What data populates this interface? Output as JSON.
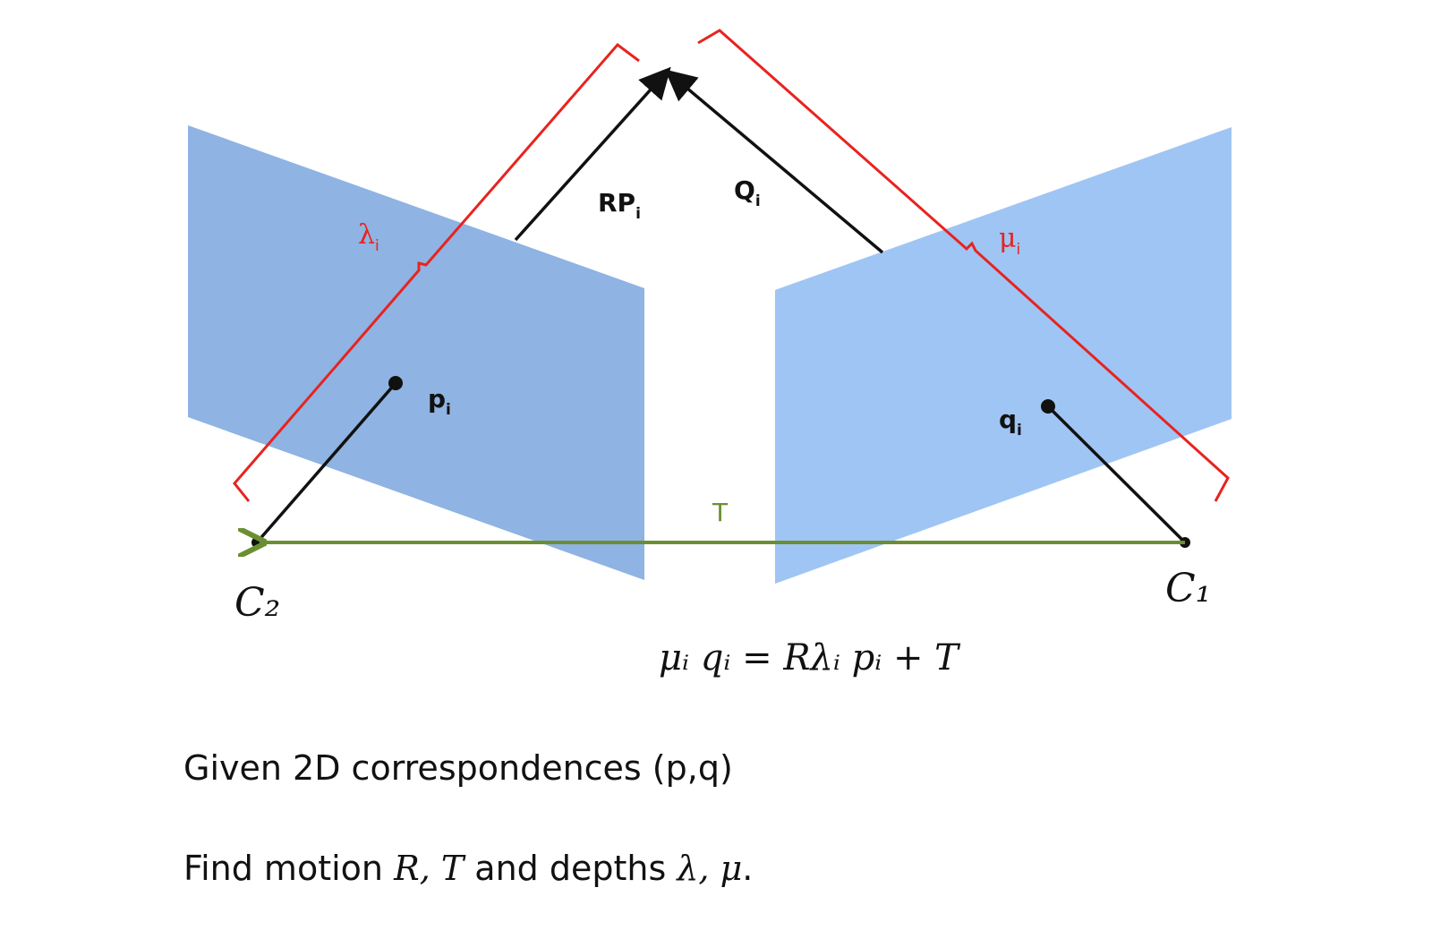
{
  "labels": {
    "rp": "RP",
    "rp_sub": "i",
    "q_big": "Q",
    "q_big_sub": "i",
    "lambda": "λ",
    "lambda_sub": "i",
    "mu": "μ",
    "mu_sub": "i",
    "p": "p",
    "p_sub": "i",
    "q": "q",
    "q_sub": "i",
    "t": "T",
    "c2": "C₂",
    "c1": "C₁"
  },
  "equation": "μᵢ qᵢ = Rλᵢ pᵢ + T",
  "caption": {
    "line1": "Given 2D correspondences (p,q)",
    "line2_prefix": "Find motion ",
    "line2_motion": "R, T",
    "line2_middle": " and depths ",
    "line2_depths": "λ, μ",
    "line2_suffix": "."
  },
  "colors": {
    "left_plane": "#8fb3e2",
    "right_plane": "#9fc5f4",
    "bracket": "#e8231f",
    "baseline": "#6a8f32",
    "ray": "#111111"
  }
}
